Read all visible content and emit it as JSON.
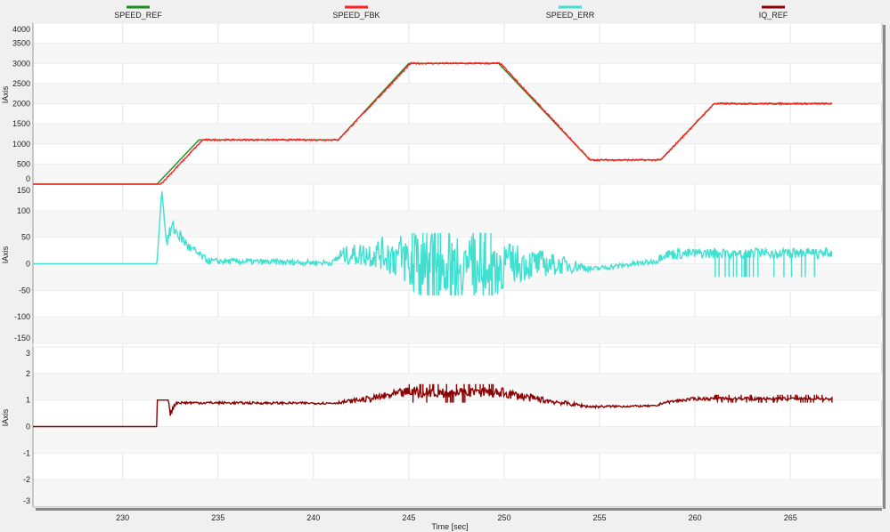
{
  "chart_data": {
    "type": "line",
    "xlabel": "Time [sec]",
    "xlim": [
      225.3,
      269.8
    ],
    "xticks": [
      230,
      235,
      240,
      245,
      250,
      255,
      260,
      265
    ],
    "legend": [
      {
        "name": "SPEED_REF",
        "color": "#1e8c1e"
      },
      {
        "name": "SPEED_FBK",
        "color": "#ff2020"
      },
      {
        "name": "SPEED_ERR",
        "color": "#40e0d0"
      },
      {
        "name": "IQ_REF",
        "color": "#8b0000"
      }
    ],
    "panels": [
      {
        "ylabel": "IAxis",
        "ylim": [
          0,
          4000
        ],
        "yticks": [
          0,
          500,
          1000,
          1500,
          2000,
          2500,
          3000,
          3500,
          4000
        ],
        "series": [
          {
            "name": "SPEED_REF",
            "color": "#1e8c1e",
            "knots": [
              [
                225.3,
                0
              ],
              [
                231.8,
                0
              ],
              [
                234.0,
                1100
              ],
              [
                241.3,
                1100
              ],
              [
                245.0,
                3000
              ],
              [
                249.7,
                3000
              ],
              [
                254.5,
                600
              ],
              [
                258.2,
                600
              ],
              [
                261.0,
                2000
              ],
              [
                267.2,
                2000
              ]
            ],
            "noise": 0
          },
          {
            "name": "SPEED_FBK",
            "color": "#ff2020",
            "knots": [
              [
                225.3,
                0
              ],
              [
                232.0,
                0
              ],
              [
                234.2,
                1100
              ],
              [
                241.3,
                1100
              ],
              [
                245.1,
                3000
              ],
              [
                249.8,
                3000
              ],
              [
                254.5,
                600
              ],
              [
                258.2,
                600
              ],
              [
                261.0,
                2000
              ],
              [
                267.2,
                2000
              ]
            ],
            "noise": 20
          }
        ]
      },
      {
        "ylabel": "IAxis",
        "ylim": [
          -150,
          150
        ],
        "yticks": [
          -150,
          -100,
          -50,
          0,
          50,
          100
        ],
        "series": [
          {
            "name": "SPEED_ERR",
            "color": "#40e0d0",
            "knots": [
              [
                225.3,
                0,
                0
              ],
              [
                231.8,
                0,
                0
              ],
              [
                232.05,
                140,
                0
              ],
              [
                232.3,
                40,
                10
              ],
              [
                232.6,
                70,
                15
              ],
              [
                233.5,
                30,
                10
              ],
              [
                234.5,
                5,
                6
              ],
              [
                241.0,
                2,
                5
              ],
              [
                241.4,
                15,
                15
              ],
              [
                243.5,
                20,
                30
              ],
              [
                244.8,
                10,
                50
              ],
              [
                245.0,
                0,
                60
              ],
              [
                249.7,
                0,
                60
              ],
              [
                250.2,
                0,
                40
              ],
              [
                252.0,
                0,
                25
              ],
              [
                254.0,
                -5,
                10
              ],
              [
                254.6,
                -10,
                5
              ],
              [
                258.0,
                5,
                5
              ],
              [
                258.3,
                18,
                10
              ],
              [
                261.0,
                20,
                10
              ],
              [
                267.2,
                20,
                10
              ]
            ],
            "spikes": [
              [
                245.0,
                249.7,
                -60,
                58
              ],
              [
                261.0,
                267.2,
                -25,
                25
              ]
            ]
          }
        ]
      },
      {
        "ylabel": "IAxis",
        "ylim": [
          -3,
          3
        ],
        "yticks": [
          -3,
          -2,
          -1,
          0,
          1,
          2,
          3
        ],
        "series": [
          {
            "name": "IQ_REF",
            "color": "#8b0000",
            "knots": [
              [
                225.3,
                0,
                0
              ],
              [
                231.8,
                0,
                0
              ],
              [
                231.81,
                1,
                0
              ],
              [
                232.4,
                1,
                0
              ],
              [
                232.5,
                0.5,
                0.1
              ],
              [
                232.8,
                0.9,
                0.05
              ],
              [
                241.0,
                0.88,
                0.04
              ],
              [
                243.0,
                1.05,
                0.12
              ],
              [
                245.0,
                1.3,
                0.2
              ],
              [
                249.7,
                1.3,
                0.2
              ],
              [
                252.0,
                1.0,
                0.12
              ],
              [
                254.5,
                0.75,
                0.05
              ],
              [
                258.0,
                0.78,
                0.03
              ],
              [
                258.3,
                0.9,
                0.05
              ],
              [
                260.0,
                1.05,
                0.06
              ],
              [
                267.2,
                1.05,
                0.06
              ]
            ],
            "spikes": [
              [
                245.0,
                249.7,
                0.9,
                1.6
              ],
              [
                261.0,
                267.2,
                0.9,
                1.2
              ]
            ]
          }
        ]
      }
    ]
  }
}
